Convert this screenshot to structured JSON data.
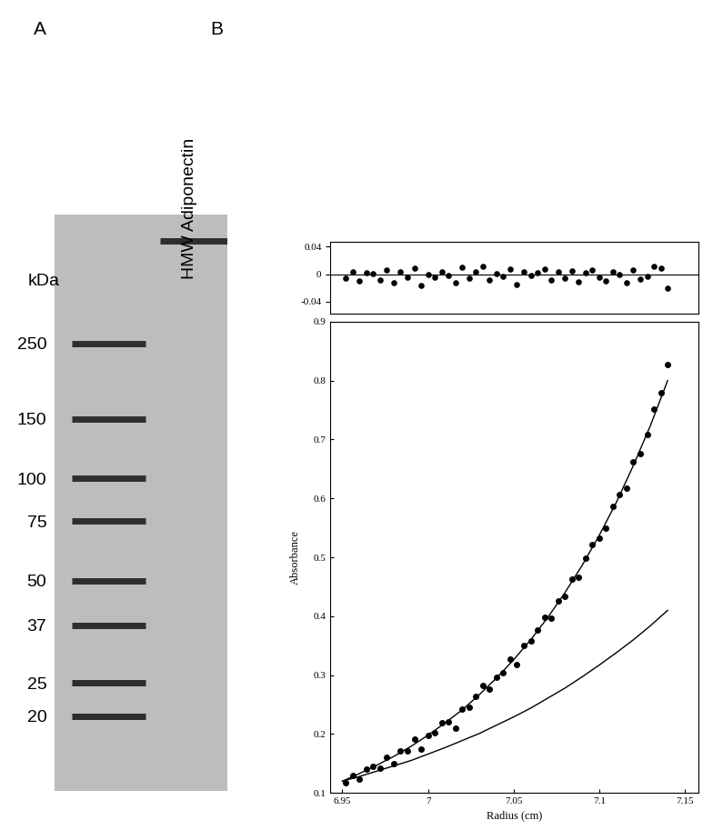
{
  "chart_data": [
    {
      "type": "gel",
      "title": "A",
      "ylabel": "kDa",
      "log": "y",
      "categories": [
        null,
        "HMW Adiponectin"
      ],
      "lanes": [
        {
          "bands": [
            250,
            150,
            100,
            75,
            50,
            37,
            25,
            20
          ]
        },
        {
          "bands": [
            500
          ]
        }
      ],
      "ylim": [
        12,
        600
      ],
      "yticks": [
        250,
        150,
        100,
        75,
        50,
        37,
        25,
        20
      ],
      "tick_labels": "y"
    },
    {
      "type": "scatter",
      "title": "B",
      "tick_labels": "y",
      "hline": 0,
      "x": [
        6.952,
        6.956,
        6.96,
        6.964,
        6.968,
        6.972,
        6.976,
        6.98,
        6.984,
        6.988,
        6.992,
        6.996,
        7.0,
        7.004,
        7.008,
        7.012,
        7.016,
        7.02,
        7.024,
        7.028,
        7.032,
        7.036,
        7.04,
        7.044,
        7.048,
        7.052,
        7.056,
        7.06,
        7.064,
        7.068,
        7.072,
        7.076,
        7.08,
        7.084,
        7.088,
        7.092,
        7.096,
        7.1,
        7.104,
        7.108,
        7.112,
        7.116,
        7.12,
        7.124,
        7.128,
        7.132,
        7.136,
        7.14
      ],
      "values": [
        -0.006,
        0.004,
        -0.01,
        0.002,
        0.001,
        -0.008,
        0.006,
        -0.012,
        0.003,
        -0.004,
        0.009,
        -0.016,
        0.0,
        -0.005,
        0.004,
        -0.002,
        -0.013,
        0.01,
        -0.006,
        0.003,
        0.011,
        -0.008,
        0.001,
        -0.003,
        0.007,
        -0.015,
        0.004,
        -0.002,
        0.002,
        0.008,
        -0.009,
        0.003,
        -0.006,
        0.005,
        -0.011,
        0.002,
        0.006,
        -0.004,
        -0.01,
        0.004,
        0.0,
        -0.012,
        0.006,
        -0.007,
        -0.003,
        0.012,
        0.009,
        -0.02
      ],
      "xlim": [
        6.943,
        7.158
      ],
      "ylim": [
        -0.057,
        0.047
      ],
      "yticks": [
        0.04,
        0,
        -0.04
      ]
    },
    {
      "type": "scatter",
      "xlabel": "Radius (cm)",
      "ylabel": "Absorbance",
      "x": [
        6.952,
        6.956,
        6.96,
        6.964,
        6.968,
        6.972,
        6.976,
        6.98,
        6.984,
        6.988,
        6.992,
        6.996,
        7.0,
        7.004,
        7.008,
        7.012,
        7.016,
        7.02,
        7.024,
        7.028,
        7.032,
        7.036,
        7.04,
        7.044,
        7.048,
        7.052,
        7.056,
        7.06,
        7.064,
        7.068,
        7.072,
        7.076,
        7.08,
        7.084,
        7.088,
        7.092,
        7.096,
        7.1,
        7.104,
        7.108,
        7.112,
        7.116,
        7.12,
        7.124,
        7.128,
        7.132,
        7.136,
        7.14
      ],
      "values": [
        0.118,
        0.13,
        0.124,
        0.14,
        0.145,
        0.142,
        0.161,
        0.15,
        0.172,
        0.172,
        0.192,
        0.175,
        0.198,
        0.202,
        0.219,
        0.221,
        0.21,
        0.242,
        0.245,
        0.264,
        0.283,
        0.276,
        0.296,
        0.304,
        0.327,
        0.318,
        0.35,
        0.358,
        0.377,
        0.398,
        0.397,
        0.426,
        0.434,
        0.463,
        0.466,
        0.498,
        0.522,
        0.533,
        0.549,
        0.586,
        0.606,
        0.618,
        0.662,
        0.676,
        0.708,
        0.752,
        0.779,
        0.828
      ],
      "curves": [
        {
          "x": [
            6.95,
            6.96,
            6.97,
            6.98,
            6.99,
            7.0,
            7.01,
            7.02,
            7.03,
            7.04,
            7.05,
            7.06,
            7.07,
            7.08,
            7.09,
            7.1,
            7.11,
            7.12,
            7.13,
            7.14
          ],
          "values": [
            0.12,
            0.133,
            0.147,
            0.162,
            0.179,
            0.198,
            0.219,
            0.241,
            0.267,
            0.295,
            0.326,
            0.36,
            0.398,
            0.44,
            0.486,
            0.537,
            0.593,
            0.656,
            0.724,
            0.8
          ]
        },
        {
          "x": [
            6.95,
            6.96,
            6.97,
            6.98,
            6.99,
            7.0,
            7.01,
            7.02,
            7.03,
            7.04,
            7.05,
            7.06,
            7.07,
            7.08,
            7.09,
            7.1,
            7.11,
            7.12,
            7.13,
            7.14
          ],
          "values": [
            0.12,
            0.128,
            0.137,
            0.146,
            0.155,
            0.166,
            0.177,
            0.189,
            0.201,
            0.215,
            0.229,
            0.244,
            0.261,
            0.278,
            0.297,
            0.317,
            0.338,
            0.36,
            0.384,
            0.41
          ]
        }
      ],
      "xlim": [
        6.943,
        7.158
      ],
      "xticks": [
        6.95,
        7,
        7.05,
        7.1,
        7.15
      ],
      "ylim": [
        0.1,
        0.9
      ],
      "yticks": [
        0.1,
        0.2,
        0.3,
        0.4,
        0.5,
        0.6,
        0.7,
        0.8,
        0.9
      ]
    }
  ]
}
